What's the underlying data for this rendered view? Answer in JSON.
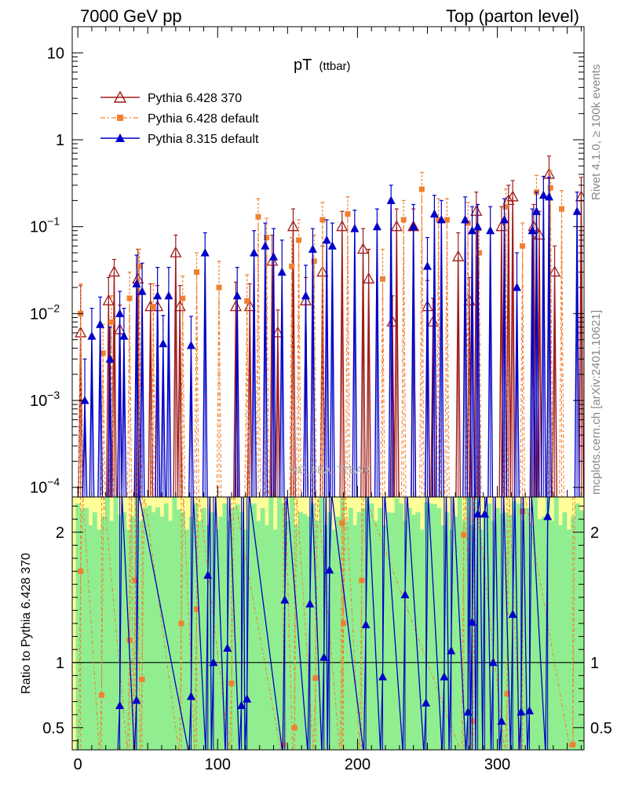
{
  "header": {
    "left": "7000 GeV pp",
    "right": "Top (parton level)"
  },
  "side_labels": {
    "rivet": "Rivet 4.1.0, ≥ 100k events",
    "mcplots": "mcplots.cern.ch [arXiv:2401.10621]"
  },
  "analysis_watermark": "MC_FBA_TTBAR",
  "colors": {
    "p6_370": "#a01b1b",
    "p6_default": "#f08030",
    "p8_default": "#0000c8",
    "band_green": "#90ee90",
    "band_yellow": "#ffff99"
  },
  "chart_data": [
    {
      "type": "line",
      "panel": "main",
      "title": "pT",
      "title_sub": "(ttbar)",
      "yscale": "log",
      "xlim": [
        -4,
        362
      ],
      "ylim": [
        7.75e-05,
        20
      ],
      "x_ticks": [
        0,
        100,
        200,
        300
      ],
      "y_ticks": [
        0.0001,
        0.001,
        0.01,
        0.1,
        1,
        10
      ],
      "y_tick_labels": [
        {
          "base": "10",
          "exp": "−4"
        },
        {
          "base": "10",
          "exp": "−3"
        },
        {
          "base": "10",
          "exp": "−2"
        },
        {
          "base": "10",
          "exp": "−1"
        },
        {
          "base": "1",
          "exp": ""
        },
        {
          "base": "10",
          "exp": ""
        }
      ],
      "legend": [
        {
          "label": "Pythia 6.428 370",
          "series": 0
        },
        {
          "label": "Pythia 6.428 default",
          "series": 1
        },
        {
          "label": "Pythia 8.315 default",
          "series": 2
        }
      ],
      "series": [
        {
          "name": "Pythia 6.428 370",
          "marker": "open-triangle",
          "points": [
            {
              "x": 2,
              "y": 0.006,
              "err": 0.015
            },
            {
              "x": 22,
              "y": 0.014,
              "err": 0.012
            },
            {
              "x": 26,
              "y": 0.03,
              "err": 0.012
            },
            {
              "x": 30,
              "y": 0.0065,
              "err": 0.006
            },
            {
              "x": 43,
              "y": 0.025,
              "err": 0.03
            },
            {
              "x": 52,
              "y": 0.012,
              "err": 0.01
            },
            {
              "x": 57,
              "y": 0.012,
              "err": 0.009
            },
            {
              "x": 70,
              "y": 0.05,
              "err": 0.03
            },
            {
              "x": 73,
              "y": 0.012,
              "err": 0.009
            },
            {
              "x": 113,
              "y": 0.012,
              "err": 0.011
            },
            {
              "x": 123,
              "y": 0.012,
              "err": 0.01
            },
            {
              "x": 139,
              "y": 0.04,
              "err": 0.04
            },
            {
              "x": 143,
              "y": 0.006,
              "err": 0.005
            },
            {
              "x": 154,
              "y": 0.1,
              "err": 0.06
            },
            {
              "x": 163,
              "y": 0.014,
              "err": 0.012
            },
            {
              "x": 175,
              "y": 0.03,
              "err": 0.03
            },
            {
              "x": 189,
              "y": 0.1,
              "err": 0.05
            },
            {
              "x": 204,
              "y": 0.055,
              "err": 0.04
            },
            {
              "x": 208,
              "y": 0.025,
              "err": 0.03
            },
            {
              "x": 225,
              "y": 0.008,
              "err": 0.008
            },
            {
              "x": 228,
              "y": 0.1,
              "err": 0.06
            },
            {
              "x": 240,
              "y": 0.1,
              "err": 0.06
            },
            {
              "x": 250,
              "y": 0.012,
              "err": 0.012
            },
            {
              "x": 254,
              "y": 0.008,
              "err": 0.007
            },
            {
              "x": 272,
              "y": 0.045,
              "err": 0.04
            },
            {
              "x": 280,
              "y": 0.014,
              "err": 0.012
            },
            {
              "x": 285,
              "y": 0.15,
              "err": 0.1
            },
            {
              "x": 303,
              "y": 0.1,
              "err": 0.07
            },
            {
              "x": 308,
              "y": 0.2,
              "err": 0.1
            },
            {
              "x": 311,
              "y": 0.22,
              "err": 0.12
            },
            {
              "x": 326,
              "y": 0.1,
              "err": 0.08
            },
            {
              "x": 330,
              "y": 0.08,
              "err": 0.07
            },
            {
              "x": 337,
              "y": 0.4,
              "err": 0.25
            },
            {
              "x": 341,
              "y": 0.03,
              "err": 0.03
            },
            {
              "x": 360,
              "y": 0.22,
              "err": 0.15
            }
          ]
        },
        {
          "name": "Pythia 6.428 default",
          "marker": "filled-square",
          "points": [
            {
              "x": 2,
              "y": 0.01,
              "err": 0.012
            },
            {
              "x": 18,
              "y": 0.0035,
              "err": 0.004
            },
            {
              "x": 24,
              "y": 0.008,
              "err": 0.008
            },
            {
              "x": 37,
              "y": 0.015,
              "err": 0.015
            },
            {
              "x": 44,
              "y": 0.035,
              "err": 0.02
            },
            {
              "x": 54,
              "y": 0.012,
              "err": 0.01
            },
            {
              "x": 75,
              "y": 0.015,
              "err": 0.012
            },
            {
              "x": 85,
              "y": 0.03,
              "err": 0.02
            },
            {
              "x": 101,
              "y": 0.02,
              "err": 0.02
            },
            {
              "x": 121,
              "y": 0.014,
              "err": 0.014
            },
            {
              "x": 129,
              "y": 0.13,
              "err": 0.08
            },
            {
              "x": 135,
              "y": 0.075,
              "err": 0.05
            },
            {
              "x": 153,
              "y": 0.035,
              "err": 0.04
            },
            {
              "x": 158,
              "y": 0.07,
              "err": 0.05
            },
            {
              "x": 169,
              "y": 0.04,
              "err": 0.04
            },
            {
              "x": 175,
              "y": 0.12,
              "err": 0.07
            },
            {
              "x": 193,
              "y": 0.14,
              "err": 0.08
            },
            {
              "x": 218,
              "y": 0.025,
              "err": 0.03
            },
            {
              "x": 233,
              "y": 0.12,
              "err": 0.08
            },
            {
              "x": 246,
              "y": 0.27,
              "err": 0.15
            },
            {
              "x": 258,
              "y": 0.12,
              "err": 0.09
            },
            {
              "x": 264,
              "y": 0.12,
              "err": 0.09
            },
            {
              "x": 279,
              "y": 0.11,
              "err": 0.08
            },
            {
              "x": 287,
              "y": 0.05,
              "err": 0.04
            },
            {
              "x": 306,
              "y": 0.17,
              "err": 0.1
            },
            {
              "x": 318,
              "y": 0.06,
              "err": 0.05
            },
            {
              "x": 328,
              "y": 0.25,
              "err": 0.14
            },
            {
              "x": 338,
              "y": 0.28,
              "err": 0.16
            },
            {
              "x": 346,
              "y": 0.16,
              "err": 0.1
            }
          ]
        },
        {
          "name": "Pythia 8.315 default",
          "marker": "filled-triangle",
          "points": [
            {
              "x": 5,
              "y": 0.001,
              "err": 0.002
            },
            {
              "x": 10,
              "y": 0.0055,
              "err": 0.006
            },
            {
              "x": 16,
              "y": 0.0075,
              "err": 0.008
            },
            {
              "x": 23,
              "y": 0.003,
              "err": 0.004
            },
            {
              "x": 30,
              "y": 0.01,
              "err": 0.008
            },
            {
              "x": 33,
              "y": 0.0055,
              "err": 0.006
            },
            {
              "x": 42,
              "y": 0.022,
              "err": 0.025
            },
            {
              "x": 46,
              "y": 0.018,
              "err": 0.02
            },
            {
              "x": 57,
              "y": 0.016,
              "err": 0.018
            },
            {
              "x": 61,
              "y": 0.0045,
              "err": 0.005
            },
            {
              "x": 65,
              "y": 0.016,
              "err": 0.018
            },
            {
              "x": 81,
              "y": 0.0043,
              "err": 0.005
            },
            {
              "x": 91,
              "y": 0.05,
              "err": 0.035
            },
            {
              "x": 114,
              "y": 0.016,
              "err": 0.018
            },
            {
              "x": 126,
              "y": 0.05,
              "err": 0.04
            },
            {
              "x": 134,
              "y": 0.06,
              "err": 0.05
            },
            {
              "x": 140,
              "y": 0.045,
              "err": 0.05
            },
            {
              "x": 146,
              "y": 0.03,
              "err": 0.04
            },
            {
              "x": 163,
              "y": 0.016,
              "err": 0.02
            },
            {
              "x": 168,
              "y": 0.055,
              "err": 0.04
            },
            {
              "x": 178,
              "y": 0.07,
              "err": 0.05
            },
            {
              "x": 182,
              "y": 0.06,
              "err": 0.05
            },
            {
              "x": 198,
              "y": 0.095,
              "err": 0.06
            },
            {
              "x": 214,
              "y": 0.1,
              "err": 0.06
            },
            {
              "x": 224,
              "y": 0.2,
              "err": 0.1
            },
            {
              "x": 240,
              "y": 0.1,
              "err": 0.08
            },
            {
              "x": 250,
              "y": 0.035,
              "err": 0.04
            },
            {
              "x": 255,
              "y": 0.14,
              "err": 0.09
            },
            {
              "x": 260,
              "y": 0.12,
              "err": 0.08
            },
            {
              "x": 277,
              "y": 0.12,
              "err": 0.1
            },
            {
              "x": 282,
              "y": 0.09,
              "err": 0.08
            },
            {
              "x": 286,
              "y": 0.1,
              "err": 0.08
            },
            {
              "x": 295,
              "y": 0.09,
              "err": 0.08
            },
            {
              "x": 305,
              "y": 0.12,
              "err": 0.09
            },
            {
              "x": 314,
              "y": 0.02,
              "err": 0.03
            },
            {
              "x": 325,
              "y": 0.09,
              "err": 0.07
            },
            {
              "x": 328,
              "y": 0.15,
              "err": 0.1
            },
            {
              "x": 333,
              "y": 0.23,
              "err": 0.15
            },
            {
              "x": 337,
              "y": 0.22,
              "err": 0.15
            },
            {
              "x": 357,
              "y": 0.15,
              "err": 0.1
            }
          ]
        }
      ]
    },
    {
      "type": "line",
      "panel": "ratio",
      "ylabel": "Ratio to Pythia 6.428 370",
      "xlim": [
        -4,
        362
      ],
      "ylim": [
        0.33,
        2.27
      ],
      "y_ticks": [
        0.5,
        1,
        2
      ],
      "y_tick_labels": [
        "0.5",
        "1",
        "2"
      ],
      "x_ticks": [
        0,
        100,
        200,
        300
      ],
      "x_tick_labels": [
        "0",
        "100",
        "200",
        "300"
      ],
      "reference_line": 1,
      "series": [
        {
          "name": "Pythia 6.428 default",
          "points": [
            {
              "x": 2,
              "y": 1.7
            },
            {
              "x": 17,
              "y": 0.75
            },
            {
              "x": 37,
              "y": 1.17
            },
            {
              "x": 41,
              "y": 1.63
            },
            {
              "x": 46,
              "y": 0.87
            },
            {
              "x": 74,
              "y": 1.3
            },
            {
              "x": 85,
              "y": 1.41
            },
            {
              "x": 110,
              "y": 0.84
            },
            {
              "x": 147,
              "y": 0.37
            },
            {
              "x": 155,
              "y": 0.5
            },
            {
              "x": 170,
              "y": 0.88
            },
            {
              "x": 189,
              "y": 2.07
            },
            {
              "x": 190,
              "y": 1.3
            },
            {
              "x": 203,
              "y": 1.63
            },
            {
              "x": 276,
              "y": 1.98
            },
            {
              "x": 283,
              "y": 0.55
            },
            {
              "x": 307,
              "y": 0.76
            },
            {
              "x": 318,
              "y": 2.16
            },
            {
              "x": 354,
              "y": 0.37
            }
          ]
        },
        {
          "name": "Pythia 8.315 default",
          "points": [
            {
              "x": 30,
              "y": 0.67
            },
            {
              "x": 42,
              "y": 0.71
            },
            {
              "x": 81,
              "y": 0.74
            },
            {
              "x": 93,
              "y": 1.67
            },
            {
              "x": 97,
              "y": 1.0
            },
            {
              "x": 107,
              "y": 1.11
            },
            {
              "x": 117,
              "y": 0.67
            },
            {
              "x": 121,
              "y": 0.72
            },
            {
              "x": 148,
              "y": 1.48
            },
            {
              "x": 166,
              "y": 1.45
            },
            {
              "x": 176,
              "y": 1.04
            },
            {
              "x": 180,
              "y": 1.71
            },
            {
              "x": 206,
              "y": 1.29
            },
            {
              "x": 218,
              "y": 0.89
            },
            {
              "x": 234,
              "y": 1.52
            },
            {
              "x": 249,
              "y": 0.69
            },
            {
              "x": 262,
              "y": 0.89
            },
            {
              "x": 267,
              "y": 1.09
            },
            {
              "x": 279,
              "y": 0.62
            },
            {
              "x": 282,
              "y": 1.31
            },
            {
              "x": 286,
              "y": 2.14
            },
            {
              "x": 291,
              "y": 2.14
            },
            {
              "x": 297,
              "y": 1.0
            },
            {
              "x": 303,
              "y": 0.55
            },
            {
              "x": 311,
              "y": 1.37
            },
            {
              "x": 317,
              "y": 0.62
            },
            {
              "x": 323,
              "y": 0.63
            },
            {
              "x": 336,
              "y": 2.12
            }
          ]
        }
      ]
    }
  ]
}
